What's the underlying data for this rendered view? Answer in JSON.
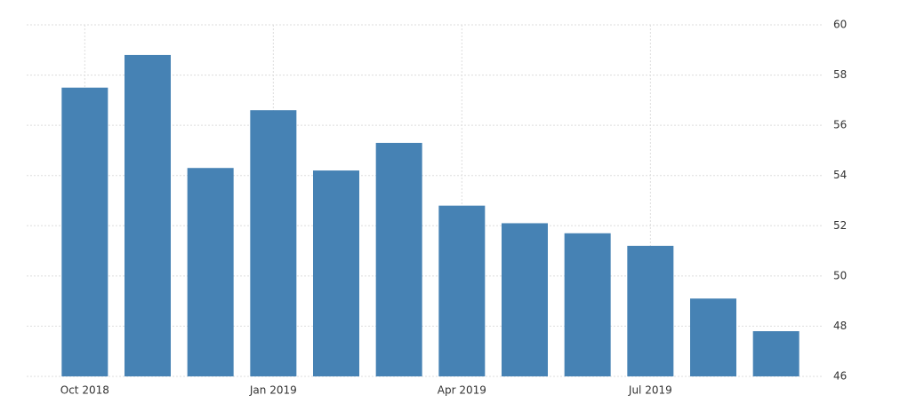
{
  "chart_data": {
    "type": "bar",
    "categories": [
      "Oct 2018",
      null,
      null,
      "Jan 2019",
      null,
      null,
      "Apr 2019",
      null,
      null,
      "Jul 2019",
      null,
      null
    ],
    "values": [
      57.5,
      58.8,
      54.3,
      56.6,
      54.2,
      55.3,
      52.8,
      52.1,
      51.7,
      51.2,
      49.1,
      47.8
    ],
    "color": "#4682b4",
    "ylim": [
      46,
      60
    ],
    "yticks": [
      46,
      48,
      50,
      52,
      54,
      56,
      58,
      60
    ],
    "grid": true
  }
}
